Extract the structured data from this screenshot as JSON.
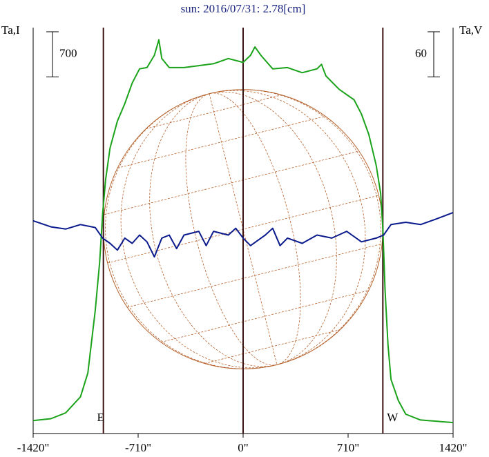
{
  "chart_data": {
    "type": "line",
    "title": "sun: 2016/07/31: 2.78[cm]",
    "y_label": "Ta,I",
    "y2_label": "Ta,V",
    "xlim": [
      -1420,
      1420
    ],
    "xticks": [
      {
        "value": -1420,
        "label": "-1420\""
      },
      {
        "value": -710,
        "label": "-710\""
      },
      {
        "value": 0,
        "label": "0\""
      },
      {
        "value": 710,
        "label": "710\""
      },
      {
        "value": 1420,
        "label": "1420\""
      }
    ],
    "ylim": [
      0,
      6300
    ],
    "y2lim": [
      0,
      540
    ],
    "scale_bars": [
      {
        "value": 700,
        "axis": "y"
      },
      {
        "value": 60,
        "axis": "y2"
      }
    ],
    "limb_lines": [
      -945,
      0,
      945
    ],
    "annotations": [
      {
        "text": "E",
        "x": -945
      },
      {
        "text": "W",
        "x": 945
      }
    ],
    "series": [
      {
        "name": "Ta,I",
        "color": "#1aa31a",
        "axis": "y",
        "x": [
          -1420,
          -1300,
          -1200,
          -1100,
          -1050,
          -1000,
          -970,
          -950,
          -930,
          -900,
          -850,
          -800,
          -750,
          -700,
          -650,
          -600,
          -570,
          -550,
          -500,
          -400,
          -300,
          -200,
          -100,
          0,
          50,
          80,
          120,
          200,
          300,
          400,
          500,
          530,
          560,
          650,
          750,
          800,
          850,
          900,
          930,
          945,
          960,
          980,
          1000,
          1050,
          1100,
          1200,
          1420
        ],
        "values": [
          200,
          230,
          320,
          570,
          940,
          1910,
          2660,
          3410,
          3940,
          4430,
          4850,
          5120,
          5440,
          5660,
          5680,
          5870,
          6110,
          5820,
          5680,
          5680,
          5710,
          5740,
          5820,
          5760,
          5870,
          6000,
          5870,
          5660,
          5680,
          5600,
          5660,
          5730,
          5550,
          5340,
          5180,
          4960,
          4640,
          4160,
          3730,
          3190,
          2230,
          1370,
          840,
          510,
          300,
          210,
          170
        ]
      },
      {
        "name": "Ta,V",
        "color": "#0a1a8c",
        "axis": "y2",
        "x": [
          -1420,
          -1300,
          -1200,
          -1100,
          -1000,
          -950,
          -900,
          -850,
          -800,
          -750,
          -700,
          -650,
          -600,
          -550,
          -500,
          -450,
          -400,
          -300,
          -250,
          -200,
          -100,
          -50,
          0,
          50,
          150,
          200,
          250,
          300,
          400,
          500,
          600,
          700,
          800,
          900,
          950,
          1000,
          1100,
          1200,
          1300,
          1420
        ],
        "values": [
          283,
          275,
          272,
          278,
          274,
          260,
          253,
          244,
          260,
          253,
          264,
          255,
          235,
          260,
          264,
          246,
          264,
          269,
          250,
          269,
          264,
          273,
          260,
          250,
          264,
          273,
          250,
          260,
          253,
          264,
          260,
          269,
          255,
          260,
          264,
          278,
          281,
          278,
          285,
          294
        ]
      }
    ]
  }
}
